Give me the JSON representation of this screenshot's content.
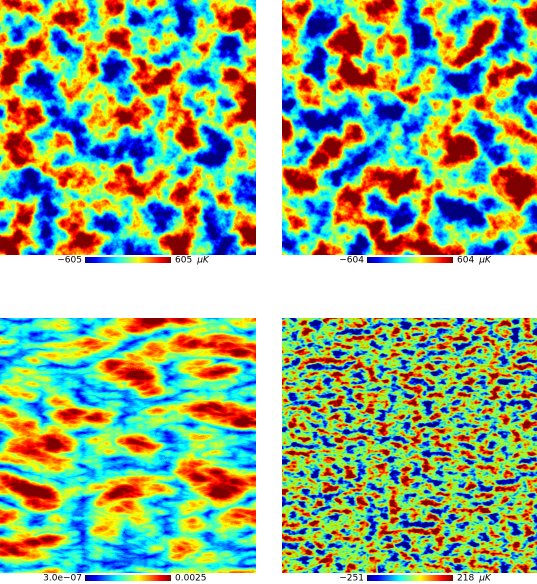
{
  "panels": [
    {
      "min_label": "−605",
      "max_label": "605",
      "unit": "μK"
    },
    {
      "min_label": "−604",
      "max_label": "604",
      "unit": "μK"
    },
    {
      "min_label": "3.0e−07",
      "max_label": "0.0025"
    },
    {
      "min_label": "−251",
      "max_label": "218",
      "unit": "μK"
    }
  ]
}
